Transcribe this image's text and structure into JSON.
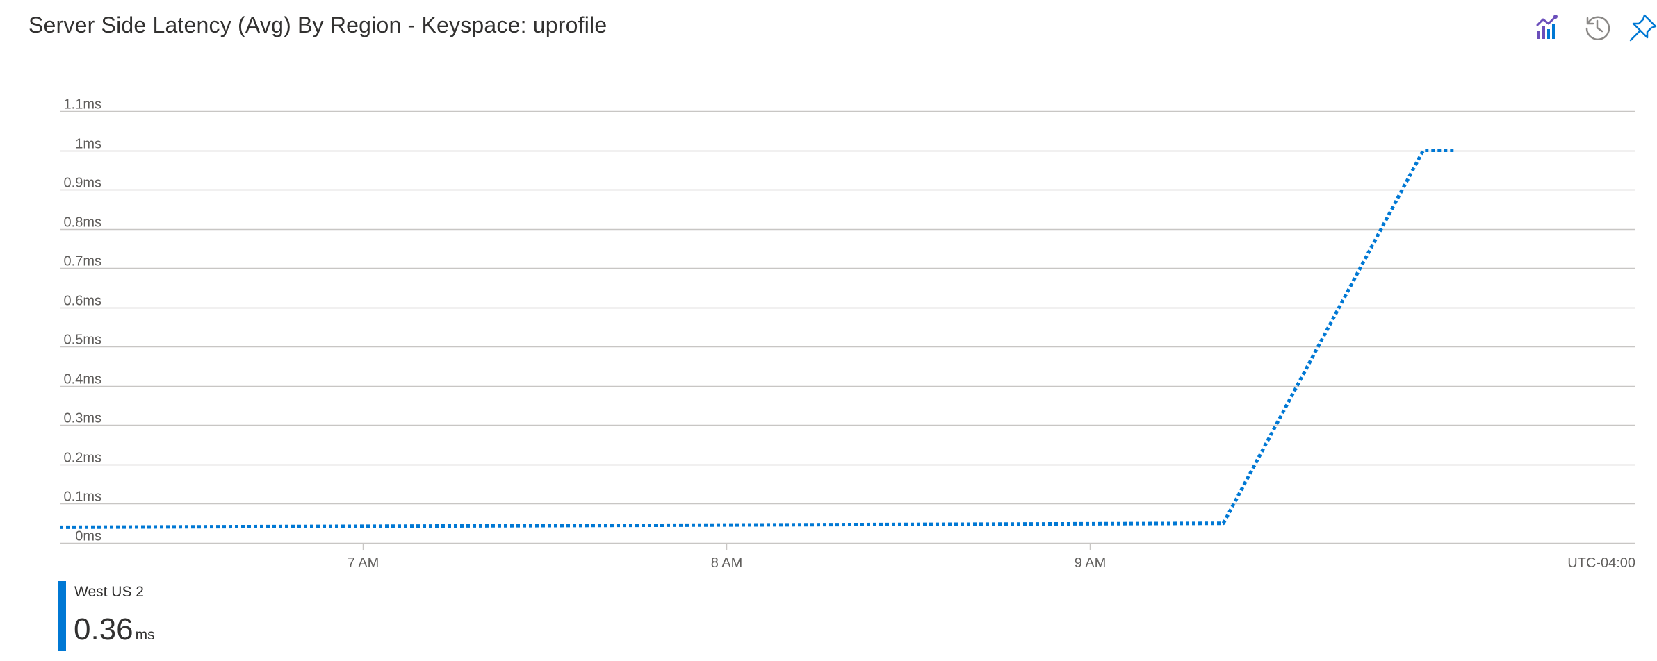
{
  "header": {
    "title": "Server Side Latency (Avg) By Region - Keyspace: uprofile"
  },
  "toolbar": {
    "icons": [
      "chart-insights-icon",
      "history-icon",
      "pin-icon"
    ]
  },
  "colors": {
    "series": "#0078d4",
    "grid": "#c8c6c4",
    "text": "#323130",
    "axis_text": "#605e5c",
    "insights_purple": "#6b4fbb",
    "insights_blue": "#0078d4",
    "history_gray": "#8a8886"
  },
  "chart_data": {
    "type": "line",
    "title": "Server Side Latency (Avg) By Region - Keyspace: uprofile",
    "xlabel": "",
    "ylabel": "",
    "y_tick_labels": [
      "0ms",
      "0.1ms",
      "0.2ms",
      "0.3ms",
      "0.4ms",
      "0.5ms",
      "0.6ms",
      "0.7ms",
      "0.8ms",
      "0.9ms",
      "1ms",
      "1.1ms"
    ],
    "y_ticks": [
      0,
      0.1,
      0.2,
      0.3,
      0.4,
      0.5,
      0.6,
      0.7,
      0.8,
      0.9,
      1.0,
      1.1
    ],
    "ylim": [
      0,
      1.1
    ],
    "x_tick_labels": [
      "7 AM",
      "8 AM",
      "9 AM"
    ],
    "x_ticks": [
      "07:00",
      "08:00",
      "09:00"
    ],
    "xlim": [
      "06:10",
      "10:30"
    ],
    "timezone_label": "UTC-04:00",
    "grid": true,
    "line_style": "dotted",
    "series": [
      {
        "name": "West US 2",
        "unit": "ms",
        "x": [
          "06:10",
          "09:22",
          "09:55",
          "10:00"
        ],
        "values": [
          0.04,
          0.05,
          1.0,
          1.0
        ]
      }
    ]
  },
  "legend": {
    "series_name": "West US 2",
    "value": "0.36",
    "unit": "ms"
  }
}
